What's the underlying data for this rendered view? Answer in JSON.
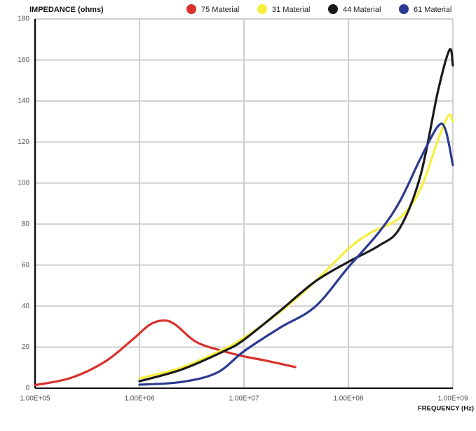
{
  "chart_data": {
    "type": "line",
    "ylabel": "IMPEDANCE (ohms)",
    "xlabel": "FREQUENCY (Hz)",
    "xscale": "log",
    "grid": true,
    "legend": "top-right",
    "xlim": [
      100000,
      1000000000
    ],
    "xticks": [
      {
        "value": 100000,
        "label": "1.00E+05"
      },
      {
        "value": 1000000,
        "label": "1.00E+06"
      },
      {
        "value": 10000000,
        "label": "1.00E+07"
      },
      {
        "value": 100000000,
        "label": "1.00E+08"
      },
      {
        "value": 1000000000,
        "label": "1.00E+09"
      }
    ],
    "ylim": [
      0,
      180
    ],
    "yticks": [
      0,
      20,
      40,
      60,
      80,
      100,
      120,
      140,
      160,
      180
    ],
    "series": [
      {
        "name": "75 Material",
        "color": "#d9312b",
        "x": [
          100000,
          220000,
          470000,
          870000,
          1260000,
          1700000,
          2200000,
          3500000,
          6400000,
          10000000,
          16000000,
          31000000
        ],
        "values": [
          1.5,
          5,
          13,
          24,
          31,
          33,
          31,
          22.5,
          18,
          15.5,
          13.5,
          10.3
        ]
      },
      {
        "name": "31 Material",
        "color": "#f5ef3c",
        "x": [
          1000000,
          2500000,
          6400000,
          10000000,
          22000000,
          48000000,
          100000000,
          166000000,
          310000000,
          490000000,
          720000000,
          910000000,
          1000000000
        ],
        "values": [
          4.8,
          10,
          19,
          24.6,
          37,
          52,
          68,
          76,
          83,
          97,
          121,
          133,
          130
        ]
      },
      {
        "name": "44 Material",
        "color": "#1a1a1a",
        "x": [
          1000000,
          2500000,
          6400000,
          10000000,
          22000000,
          48000000,
          100000000,
          196000000,
          310000000,
          490000000,
          720000000,
          930000000,
          1000000000
        ],
        "values": [
          3.4,
          9,
          18,
          23.6,
          37.6,
          52,
          61.6,
          69.5,
          78,
          103.7,
          144.8,
          165,
          157.4
        ]
      },
      {
        "name": "61 Material",
        "color": "#2b3990",
        "x": [
          1000000,
          2500000,
          5500000,
          10000000,
          22000000,
          48000000,
          100000000,
          196000000,
          310000000,
          490000000,
          720000000,
          850000000,
          1000000000
        ],
        "values": [
          1.7,
          3,
          7.5,
          18,
          29.4,
          39.7,
          59,
          76,
          91,
          112,
          127.7,
          126,
          108.8
        ]
      }
    ]
  }
}
